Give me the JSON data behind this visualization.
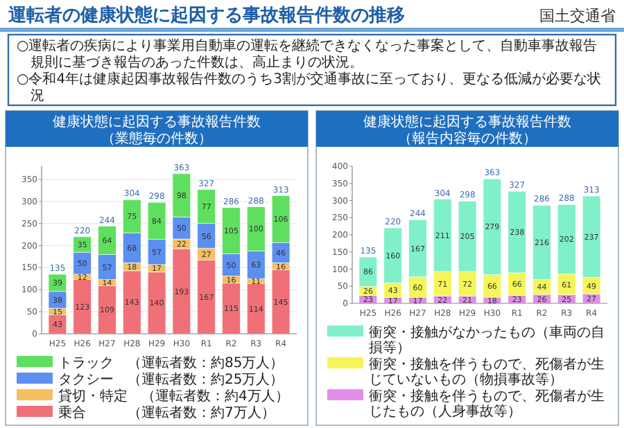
{
  "chart_data": [
    {
      "type": "other",
      "title": "運転者の健康状態に起因する事故報告件数の推移",
      "annotations": [
        "国土交通省",
        "○運転者の疾病により事業用自動車の運転を継続できなくなった事案として、自動車事故報告規則に基づき報告のあった件数は、高止まりの状況。",
        "○令和4年は健康起因事故報告件数のうち3割が交通事故に至っており、更なる低減が必要な状況"
      ]
    },
    {
      "type": "bar",
      "stacked": true,
      "title": "健康状態に起因する事故報告件数",
      "subtitle": "（業態毎の件数）",
      "categories": [
        "H25",
        "H26",
        "H27",
        "H28",
        "H29",
        "H30",
        "R1",
        "R2",
        "R3",
        "R4"
      ],
      "ylim": [
        0,
        380
      ],
      "yticks": [
        0,
        50,
        100,
        150,
        200,
        250,
        300,
        350
      ],
      "grid": "y",
      "legend": "bottom",
      "data_labels": true,
      "totals": [
        "135",
        "220",
        "244",
        "304",
        "298",
        "363",
        "327",
        "286",
        "288",
        "313"
      ],
      "series": [
        {
          "name": "乗合　　　（運転者数：約7万人）",
          "color": "#f07078",
          "values": [
            43,
            123,
            109,
            143,
            140,
            193,
            167,
            115,
            114,
            145
          ]
        },
        {
          "name": "貸切・特定　（運転者数：約4万人）",
          "color": "#f5c060",
          "values": [
            15,
            12,
            14,
            18,
            17,
            22,
            27,
            16,
            11,
            16
          ]
        },
        {
          "name": "タクシー　（運転者数：約25万人）",
          "color": "#5b8ff0",
          "values": [
            38,
            50,
            57,
            68,
            57,
            50,
            56,
            50,
            63,
            46
          ]
        },
        {
          "name": "トラック　（運転者数：約85万人）",
          "color": "#5ee05e",
          "values": [
            39,
            35,
            64,
            75,
            84,
            98,
            77,
            105,
            100,
            106
          ]
        }
      ]
    },
    {
      "type": "bar",
      "stacked": true,
      "title": "健康状態に起因する事故報告件数",
      "subtitle": "（報告内容毎の件数）",
      "categories": [
        "H25",
        "H26",
        "H27",
        "H28",
        "H29",
        "H30",
        "R1",
        "R2",
        "R3",
        "R4"
      ],
      "ylim": [
        0,
        400
      ],
      "yticks": [
        0,
        50,
        100,
        150,
        200,
        250,
        300,
        350,
        400
      ],
      "legend": "bottom",
      "data_labels": true,
      "totals": [
        "135",
        "220",
        "244",
        "304",
        "298",
        "363",
        "327",
        "286",
        "288",
        "313"
      ],
      "series": [
        {
          "name": "衝突・接触を伴うもので、死傷者が生じたもの（人身事故等）",
          "color": "#e08ee8",
          "values": [
            23,
            17,
            17,
            22,
            21,
            18,
            23,
            26,
            25,
            27
          ]
        },
        {
          "name": "衝突・接触を伴うもので、死傷者が生じていないもの（物損事故等）",
          "color": "#f5f55a",
          "values": [
            26,
            43,
            60,
            71,
            72,
            66,
            66,
            44,
            61,
            49
          ]
        },
        {
          "name": "衝突・接触がなかったもの（車両の自損等）",
          "color": "#80f0c8",
          "values": [
            86,
            160,
            167,
            211,
            205,
            279,
            238,
            216,
            202,
            237
          ]
        }
      ]
    }
  ]
}
